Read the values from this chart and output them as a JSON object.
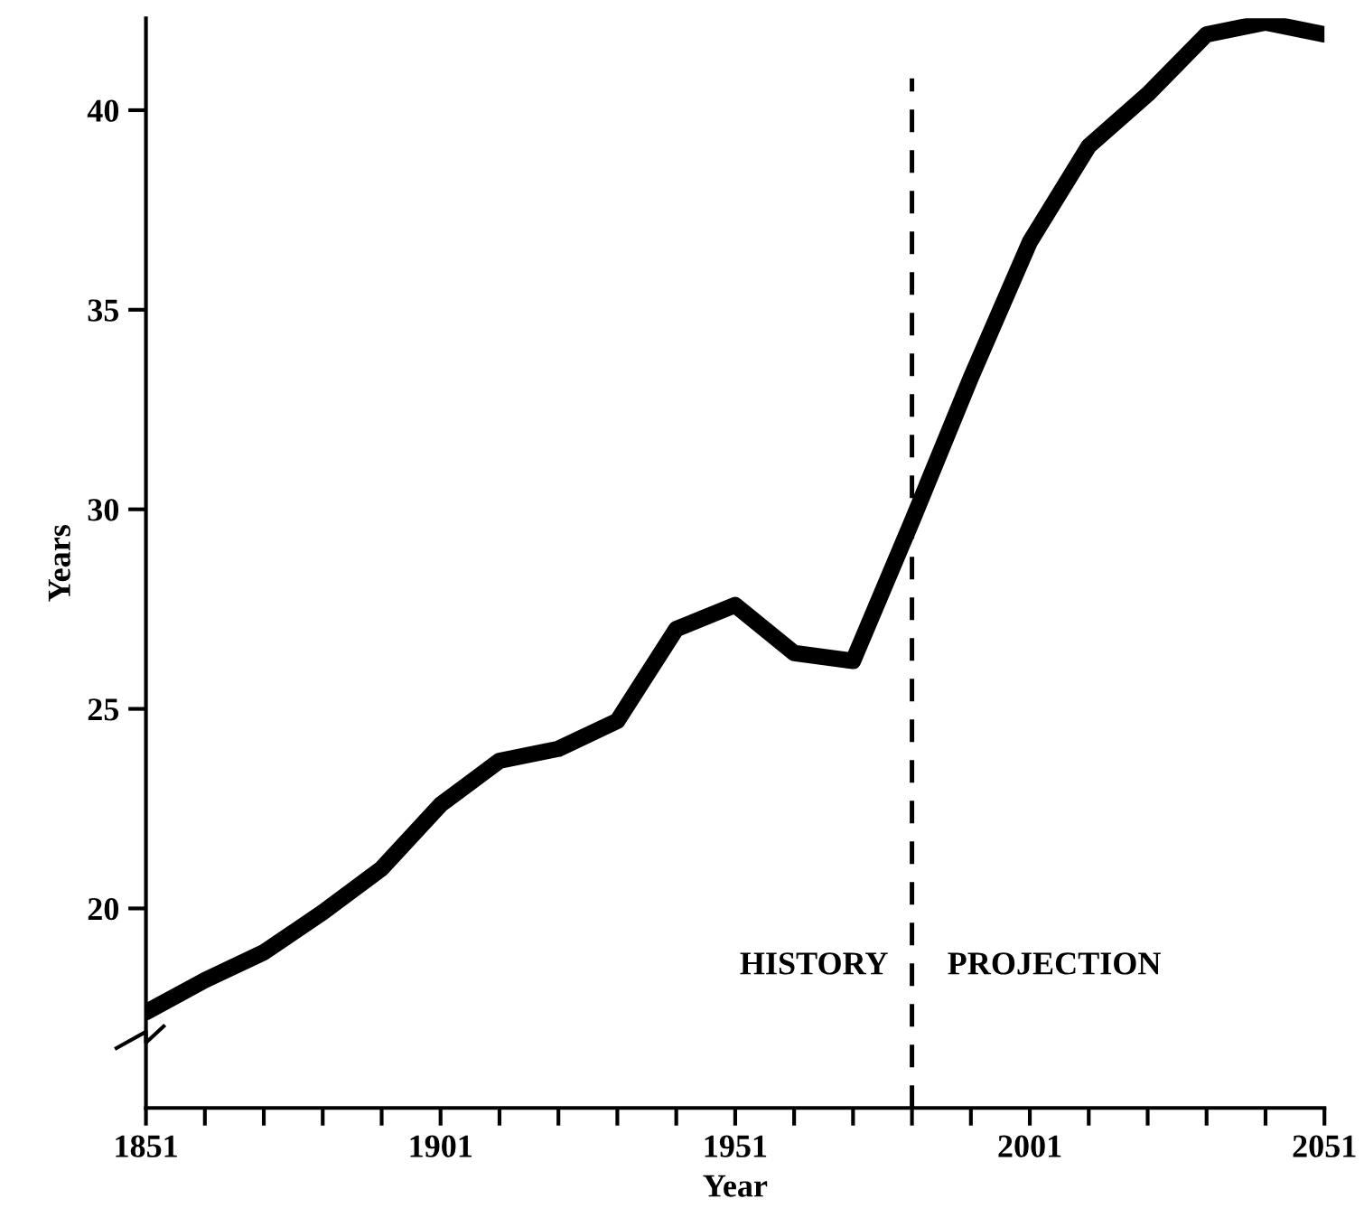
{
  "chart_data": {
    "type": "line",
    "xlabel": "Year",
    "ylabel": "Years",
    "x": [
      1851,
      1861,
      1871,
      1881,
      1891,
      1901,
      1911,
      1921,
      1931,
      1941,
      1951,
      1956,
      1961,
      1971,
      1981,
      1991,
      2001,
      2011,
      2021,
      2031,
      2041,
      2051
    ],
    "series": [
      {
        "color": "#000000",
        "values": [
          17.4,
          18.2,
          18.9,
          19.9,
          21.0,
          22.6,
          23.7,
          24.0,
          24.7,
          27.0,
          27.6,
          27.0,
          26.4,
          26.2,
          29.7,
          33.3,
          36.7,
          39.1,
          40.4,
          41.9,
          42.2,
          41.9
        ]
      }
    ],
    "xlim": [
      1851,
      2051
    ],
    "ylim": [
      15,
      42.3
    ],
    "xticks": [
      1851,
      {
        "value": 1861,
        "label": null
      },
      {
        "value": 1871,
        "label": null
      },
      {
        "value": 1881,
        "label": null
      },
      {
        "value": 1891,
        "label": null
      },
      1901,
      {
        "value": 1911,
        "label": null
      },
      {
        "value": 1921,
        "label": null
      },
      {
        "value": 1931,
        "label": null
      },
      {
        "value": 1941,
        "label": null
      },
      1951,
      {
        "value": 1961,
        "label": null
      },
      {
        "value": 1971,
        "label": null
      },
      {
        "value": 1981,
        "label": null
      },
      {
        "value": 1991,
        "label": null
      },
      2001,
      {
        "value": 2011,
        "label": null
      },
      {
        "value": 2021,
        "label": null
      },
      {
        "value": 2031,
        "label": null
      },
      {
        "value": 2041,
        "label": null
      },
      2051
    ],
    "yticks": [
      20,
      25,
      30,
      35,
      40
    ],
    "ref_lines": [
      {
        "axis": "x",
        "value": 1981,
        "line_style": "dashed",
        "color": "#000000"
      }
    ],
    "annotations": [
      "HISTORY",
      "PROJECTION"
    ],
    "grid": false,
    "legend": false,
    "marker": "none",
    "line_style": "solid"
  }
}
